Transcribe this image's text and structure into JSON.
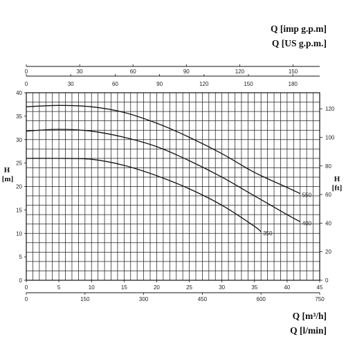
{
  "chart_data": {
    "type": "line",
    "title": "",
    "top_axes": [
      {
        "unit": "Q [imp g.p.m]",
        "ticks": [
          0,
          30,
          60,
          90,
          120,
          150
        ]
      },
      {
        "unit": "Q [US g.p.m.]",
        "ticks": [
          0,
          30,
          60,
          90,
          120,
          150,
          180
        ]
      }
    ],
    "bottom_axes": [
      {
        "unit": "Q [m³/h]",
        "ticks": [
          0,
          5,
          10,
          15,
          20,
          25,
          30,
          35,
          40,
          45
        ]
      },
      {
        "unit": "Q [l/min]",
        "ticks": [
          0,
          150,
          300,
          450,
          600,
          750
        ]
      }
    ],
    "left_axis": {
      "label_main": "H",
      "label_unit": "[m]",
      "ticks": [
        0,
        5,
        10,
        15,
        20,
        25,
        30,
        35,
        40
      ],
      "ylim": [
        0,
        40
      ]
    },
    "right_axis": {
      "label_main": "H",
      "label_unit": "[ft]",
      "ticks": [
        0,
        20,
        40,
        60,
        80,
        100,
        120
      ]
    },
    "xlim": [
      0,
      45
    ],
    "grid": true,
    "series": [
      {
        "name": "550",
        "x": [
          0,
          5,
          10,
          15,
          20,
          25,
          30,
          35,
          40,
          42
        ],
        "y": [
          37.0,
          37.3,
          37.0,
          35.8,
          33.5,
          30.5,
          27.0,
          23.0,
          19.8,
          18.5
        ]
      },
      {
        "name": "400",
        "x": [
          0,
          5,
          10,
          15,
          20,
          25,
          30,
          35,
          40,
          42
        ],
        "y": [
          31.8,
          32.2,
          31.8,
          30.5,
          28.5,
          25.5,
          22.0,
          18.0,
          14.0,
          12.5
        ]
      },
      {
        "name": "350",
        "x": [
          0,
          5,
          10,
          15,
          20,
          25,
          30,
          35,
          36
        ],
        "y": [
          26.0,
          26.0,
          25.8,
          24.5,
          22.3,
          19.5,
          16.0,
          11.5,
          10.3
        ]
      }
    ]
  }
}
